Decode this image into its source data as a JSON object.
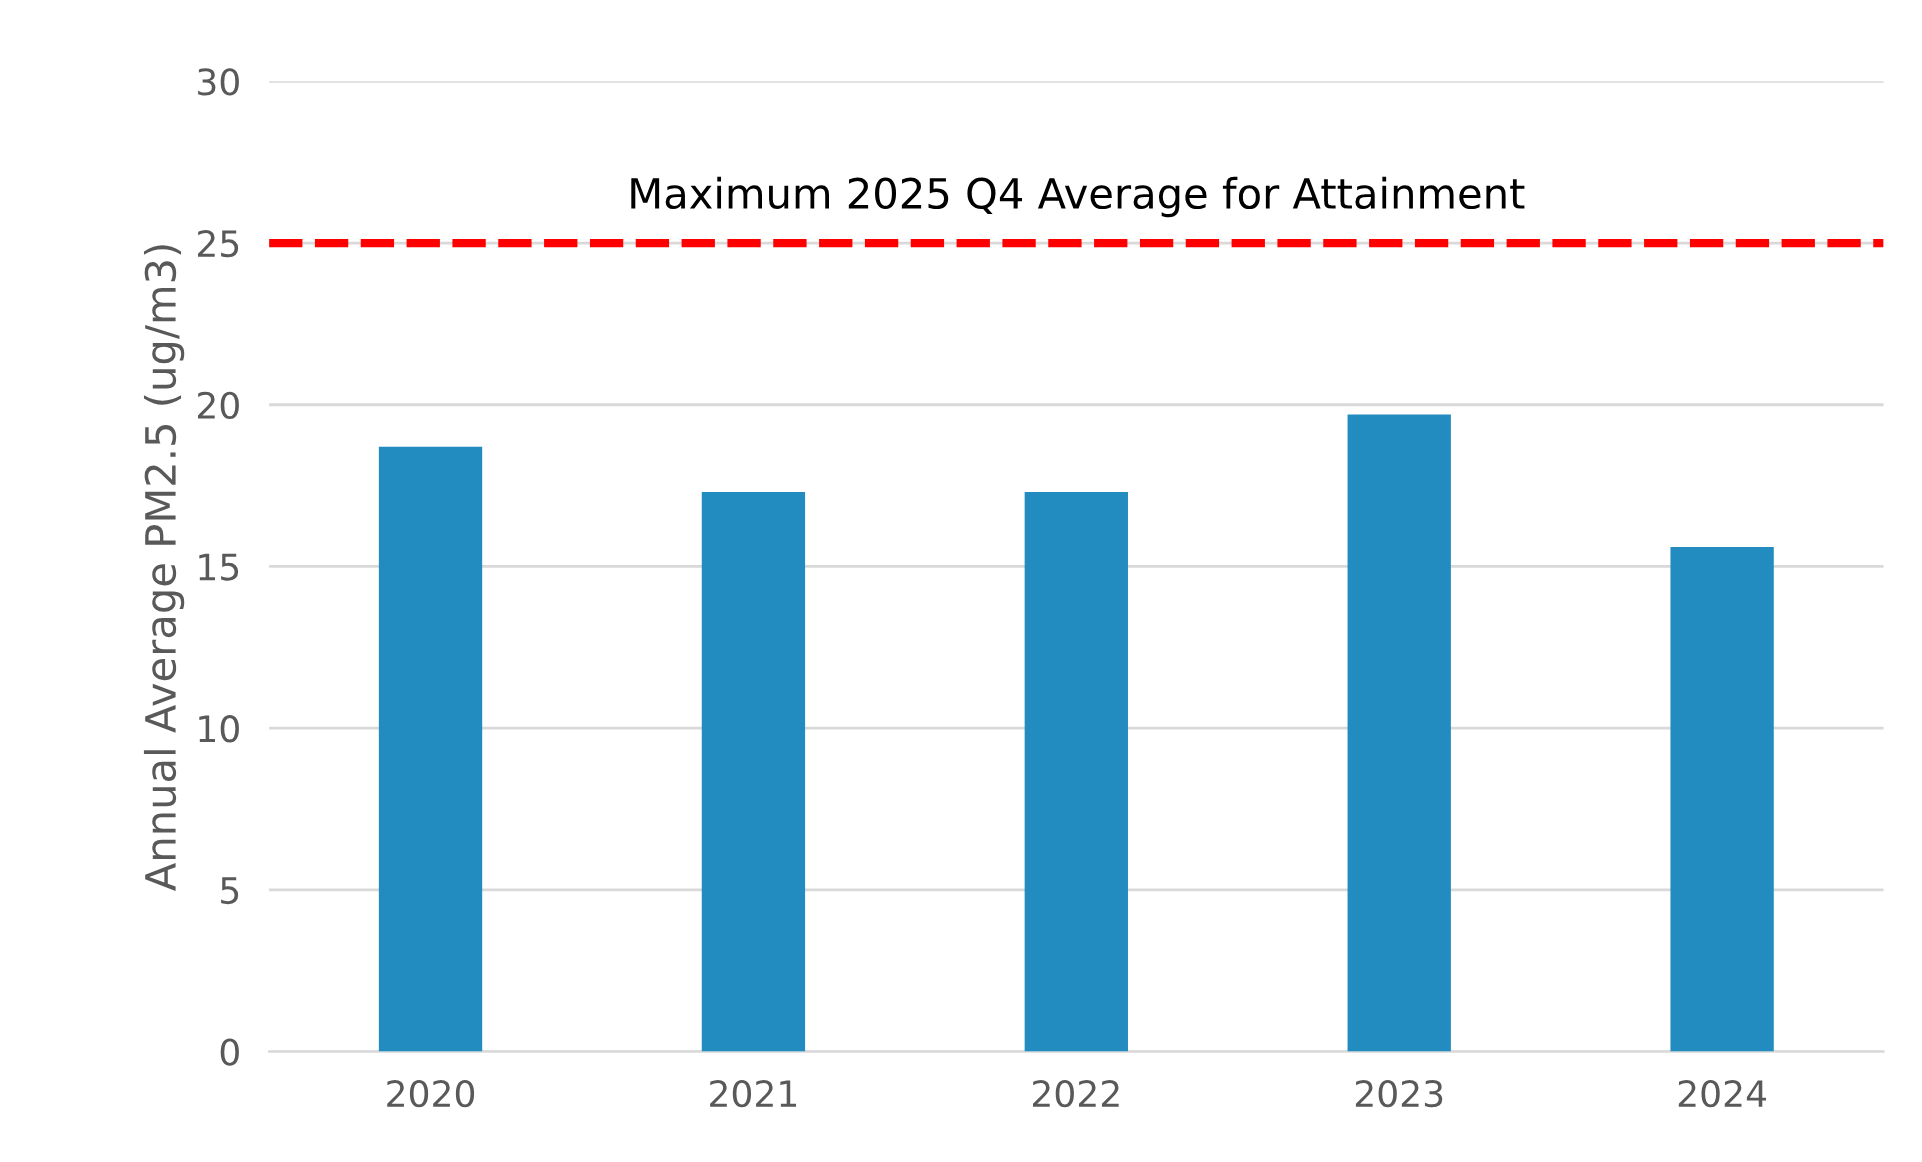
{
  "chart_data": {
    "type": "bar",
    "ylabel": "Annual Average PM2.5 (ug/m3)",
    "categories": [
      "2020",
      "2021",
      "2022",
      "2023",
      "2024"
    ],
    "values": [
      18.7,
      17.3,
      17.3,
      19.7,
      15.6
    ],
    "color": "#228bc0",
    "ylim": [
      0,
      30
    ],
    "yticks": [
      0,
      5,
      10,
      15,
      20,
      25,
      30
    ],
    "grid": "y",
    "ref_lines": [
      {
        "axis": "y",
        "value": 25,
        "label": "Maximum 2025 Q4 Average for Attainment",
        "color": "#ff0000",
        "line_style": "dashed"
      }
    ]
  }
}
